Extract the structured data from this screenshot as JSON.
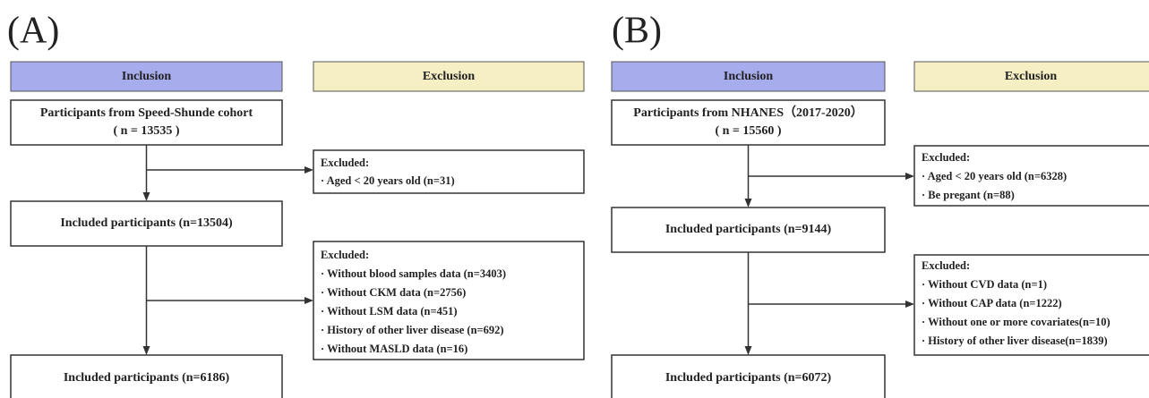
{
  "panels": [
    {
      "label": "(A)",
      "inclusion_header": "Inclusion",
      "exclusion_header": "Exclusion",
      "boxes": [
        [
          "Participants from Speed-Shunde cohort",
          "( n = 13535 )"
        ],
        [
          "Included participants (n=13504)"
        ],
        [
          "Included participants (n=6186)"
        ]
      ],
      "exclusions": [
        {
          "title": "Excluded:",
          "items": [
            "· Aged < 20 years old (n=31)"
          ]
        },
        {
          "title": "Excluded:",
          "items": [
            "· Without  blood samples data (n=3403)",
            "· Without  CKM data (n=2756)",
            "· Without  LSM  data (n=451)",
            "· History  of  other liver disease (n=692)",
            "· Without  MASLD data (n=16)"
          ]
        }
      ]
    },
    {
      "label": "(B)",
      "inclusion_header": "Inclusion",
      "exclusion_header": "Exclusion",
      "boxes": [
        [
          "Participants from NHANES（2017-2020）",
          "( n = 15560 )"
        ],
        [
          "Included participants (n=9144)"
        ],
        [
          "Included participants (n=6072)"
        ]
      ],
      "exclusions": [
        {
          "title": "Excluded:",
          "items": [
            "· Aged < 20 years old (n=6328)",
            "· Be pregant (n=88)"
          ]
        },
        {
          "title": "Excluded:",
          "items": [
            "· Without  CVD data (n=1)",
            "· Without  CAP  data (n=1222)",
            "· Without one or more covariates(n=10)",
            "· History of other liver disease(n=1839)"
          ]
        }
      ]
    }
  ]
}
